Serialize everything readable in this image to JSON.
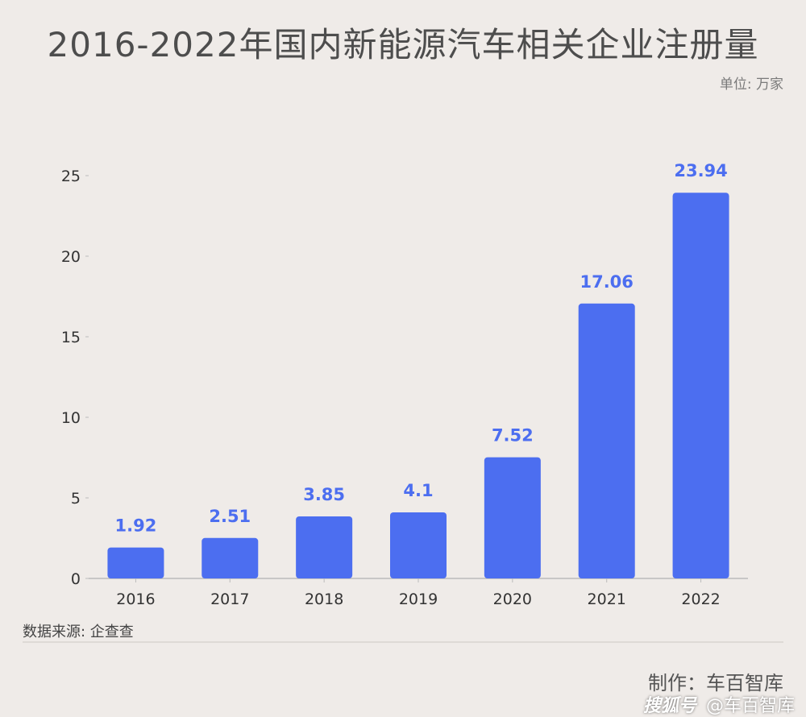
{
  "title": "2016-2022年国内新能源汽车相关企业注册量",
  "unit": "单位: 万家",
  "source": "数据来源: 企查查",
  "maker": "制作：车百智库",
  "watermark": {
    "brand": "搜狐号",
    "handle": "@车百智库"
  },
  "colors": {
    "bar": "#4c6ef0",
    "label": "#4c6ef0",
    "axis": "#bbbbbb",
    "background": "#efebe8"
  },
  "chart_data": {
    "type": "bar",
    "title": "2016-2022年国内新能源汽车相关企业注册量",
    "xlabel": "",
    "ylabel": "单位: 万家",
    "categories": [
      "2016",
      "2017",
      "2018",
      "2019",
      "2020",
      "2021",
      "2022"
    ],
    "values": [
      1.92,
      2.51,
      3.85,
      4.1,
      7.52,
      17.06,
      23.94
    ],
    "value_labels": [
      "1.92",
      "2.51",
      "3.85",
      "4.1",
      "7.52",
      "17.06",
      "23.94"
    ],
    "ylim": [
      0,
      25
    ],
    "yticks": [
      "0",
      "5",
      "10",
      "15",
      "20",
      "25"
    ],
    "grid": false
  }
}
